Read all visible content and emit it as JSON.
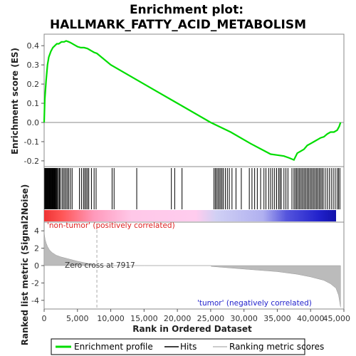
{
  "chart_data": {
    "type": "line",
    "title_line1": "Enrichment plot:",
    "title_line2": "HALLMARK_FATTY_ACID_METABOLISM",
    "ylabel_top": "Enrichment score (ES)",
    "ylabel_bottom": "Ranked list metric (Signal2Noise)",
    "xlabel": "Rank in Ordered Dataset",
    "xlim": [
      0,
      45000
    ],
    "es_ylim": [
      -0.23,
      0.46
    ],
    "es_yticks": [
      0.4,
      0.3,
      0.2,
      0.1,
      0.0,
      -0.1,
      -0.2
    ],
    "es_yticklabels": [
      "0.4",
      "0.3",
      "0.2",
      "0.1",
      "0.0",
      "-0.1",
      "-0.2"
    ],
    "metric_ylim": [
      -5,
      5
    ],
    "metric_yticks": [
      4,
      2,
      0,
      -2,
      -4
    ],
    "metric_yticklabels": [
      "4",
      "2",
      "0",
      "-2",
      "-4"
    ],
    "xticks": [
      0,
      5000,
      10000,
      15000,
      20000,
      25000,
      30000,
      35000,
      40000,
      45000
    ],
    "xticklabels": [
      "0",
      "5,000",
      "10,000",
      "15,000",
      "20,000",
      "25,000",
      "30,000",
      "35,000",
      "40,000",
      "45,000"
    ],
    "es_profile": {
      "name": "Enrichment profile",
      "color": "#00dd00",
      "x": [
        0,
        100,
        300,
        500,
        700,
        1000,
        1300,
        1600,
        1900,
        2200,
        2600,
        3000,
        3300,
        3700,
        4000,
        4500,
        5000,
        5500,
        6000,
        6500,
        7000,
        7500,
        7917,
        10000,
        15000,
        20000,
        25000,
        28000,
        31000,
        34000,
        35000,
        36000,
        36800,
        37500,
        38000,
        38500,
        39000,
        39500,
        40000,
        40500,
        41000,
        41500,
        42000,
        42500,
        43000,
        43500,
        44000,
        44300,
        44500
      ],
      "y": [
        0.0,
        0.12,
        0.22,
        0.3,
        0.34,
        0.37,
        0.39,
        0.4,
        0.41,
        0.41,
        0.42,
        0.42,
        0.425,
        0.42,
        0.415,
        0.405,
        0.395,
        0.39,
        0.39,
        0.385,
        0.375,
        0.365,
        0.36,
        0.3,
        0.2,
        0.1,
        0.0,
        -0.05,
        -0.11,
        -0.165,
        -0.17,
        -0.175,
        -0.185,
        -0.195,
        -0.16,
        -0.15,
        -0.14,
        -0.12,
        -0.11,
        -0.1,
        -0.09,
        -0.08,
        -0.075,
        -0.06,
        -0.05,
        -0.05,
        -0.04,
        -0.02,
        0.0
      ]
    },
    "hits_legend": "Hits",
    "hit_positions": [
      80,
      150,
      230,
      300,
      380,
      450,
      520,
      600,
      680,
      750,
      830,
      900,
      980,
      1050,
      1130,
      1200,
      1280,
      1360,
      1440,
      1520,
      1600,
      1700,
      1800,
      1900,
      2000,
      2150,
      2300,
      2450,
      2700,
      2900,
      3100,
      3300,
      3500,
      3700,
      3950,
      4200,
      5300,
      5600,
      5900,
      6100,
      6300,
      6500,
      6700,
      7100,
      7500,
      7800,
      10200,
      10500,
      13900,
      19100,
      19600,
      20700,
      25500,
      25700,
      25900,
      26100,
      26300,
      26500,
      26700,
      26900,
      27200,
      27500,
      27800,
      28200,
      28800,
      29600,
      30800,
      31200,
      31600,
      32000,
      32500,
      33000,
      33300,
      33700,
      34000,
      34300,
      34600,
      34900,
      35200,
      35400,
      35600,
      36000,
      36300,
      36600,
      37200,
      37500,
      37700,
      37900,
      38100,
      38300,
      38500,
      38700,
      38900,
      39100,
      39300,
      39500,
      39700,
      39900,
      40100,
      40300,
      40500,
      40700,
      40900,
      41100,
      41300,
      41500,
      41700,
      41900,
      42200,
      42500,
      42800,
      43100,
      43400,
      43700,
      44000,
      44200,
      44400
    ],
    "metric_legend": "Ranking metric scores",
    "metric": {
      "x": [
        0,
        50,
        150,
        300,
        500,
        800,
        1200,
        1800,
        2500,
        3500,
        5000,
        6500,
        7917,
        10000,
        15000,
        20000,
        25000,
        25100,
        30000,
        35000,
        38000,
        40000,
        42000,
        43000,
        43800,
        44200,
        44500
      ],
      "y": [
        4.0,
        3.5,
        3.0,
        2.6,
        2.2,
        1.8,
        1.5,
        1.2,
        1.0,
        0.8,
        0.5,
        0.25,
        0.0,
        0.0,
        0.0,
        0.0,
        0.0,
        -0.1,
        -0.4,
        -0.7,
        -1.0,
        -1.3,
        -1.7,
        -2.1,
        -2.6,
        -3.4,
        -4.8
      ]
    },
    "zero_cross_label": "Zero cross at 7917",
    "zero_cross_rank": 7917,
    "pos_label": "'non-tumor' (positively correlated)",
    "neg_label": "'tumor' (negatively correlated)",
    "pos_color": "#dd2222",
    "neg_color": "#2222cc"
  }
}
